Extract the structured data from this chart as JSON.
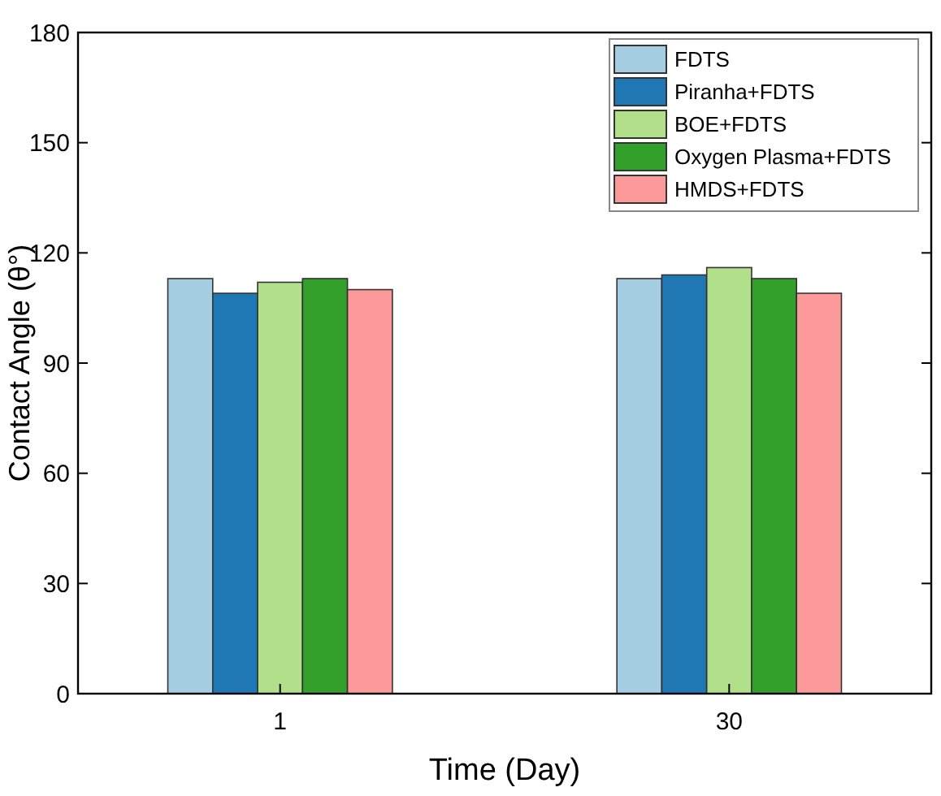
{
  "chart_data": {
    "type": "bar",
    "xlabel": "Time (Day)",
    "ylabel": "Contact Angle (θ°)",
    "categories": [
      "1",
      "30"
    ],
    "series": [
      {
        "name": "FDTS",
        "color": "#a6cee3",
        "values": [
          113,
          113
        ]
      },
      {
        "name": "Piranha+FDTS",
        "color": "#1f78b4",
        "values": [
          109,
          114
        ]
      },
      {
        "name": "BOE+FDTS",
        "color": "#b2df8a",
        "values": [
          112,
          116
        ]
      },
      {
        "name": "Oxygen Plasma+FDTS",
        "color": "#33a02c",
        "values": [
          113,
          113
        ]
      },
      {
        "name": "HMDS+FDTS",
        "color": "#fb9a99",
        "values": [
          110,
          109
        ]
      }
    ],
    "ylim": [
      0,
      180
    ],
    "yticks": [
      0,
      30,
      60,
      90,
      120,
      150,
      180
    ],
    "legend": "top right",
    "grid": false
  }
}
